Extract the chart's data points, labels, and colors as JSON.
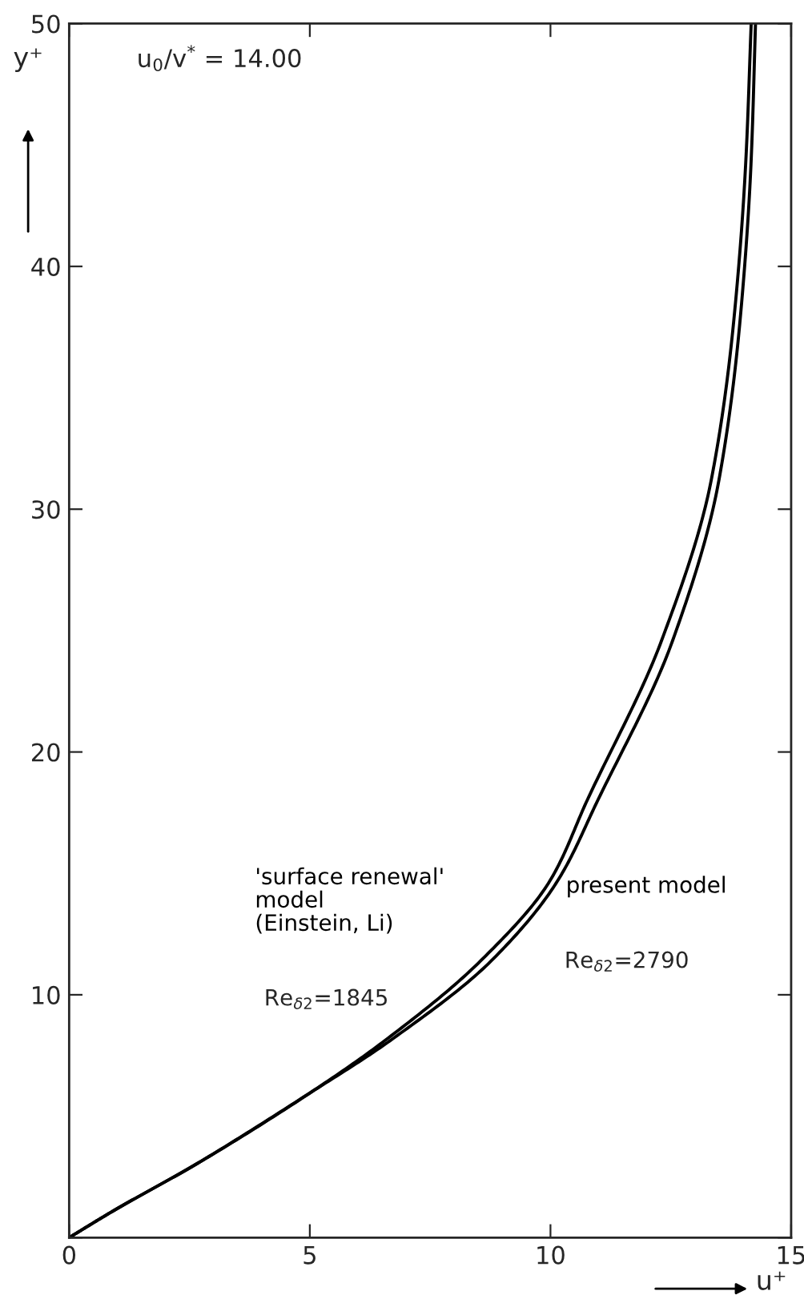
{
  "chart_data": {
    "type": "line",
    "xlabel": "u⁺",
    "ylabel": "y⁺",
    "xlim": [
      0,
      15
    ],
    "ylim": [
      0,
      50
    ],
    "xticks": [
      0,
      5,
      10,
      15
    ],
    "yticks": [
      {
        "value": 0,
        "label": null
      },
      10,
      20,
      30,
      40,
      50
    ],
    "legend": false,
    "grid": false,
    "marker": "none",
    "line_style": "solid",
    "annotations": [
      "u$_{0}$/v$^{*}$ = 14.00",
      "Re$_{δ2}$=1845",
      "Re$_{δ2}$=2790"
    ],
    "series": [
      {
        "name": "'surface renewal'\nmodel\n(Einstein, Li)",
        "color": "#000000",
        "x": [
          0,
          0.9,
          2.66,
          4.99,
          6.55,
          8.55,
          9.99,
          10.76,
          12.31,
          13.34,
          13.81,
          14.06,
          14.17
        ],
        "values": [
          0,
          1.08,
          3.05,
          5.94,
          8.1,
          11.4,
          14.7,
          18.0,
          24.6,
          31.2,
          37.8,
          44.4,
          50
        ]
      },
      {
        "name": "present model",
        "color": "#000000",
        "x": [
          0,
          0.9,
          2.66,
          4.99,
          6.66,
          8.77,
          10.15,
          10.98,
          12.54,
          13.5,
          13.94,
          14.17,
          14.26
        ],
        "values": [
          0,
          1.08,
          3.05,
          5.94,
          8.1,
          11.4,
          14.7,
          18.0,
          24.6,
          31.2,
          37.8,
          44.4,
          50
        ]
      }
    ]
  }
}
